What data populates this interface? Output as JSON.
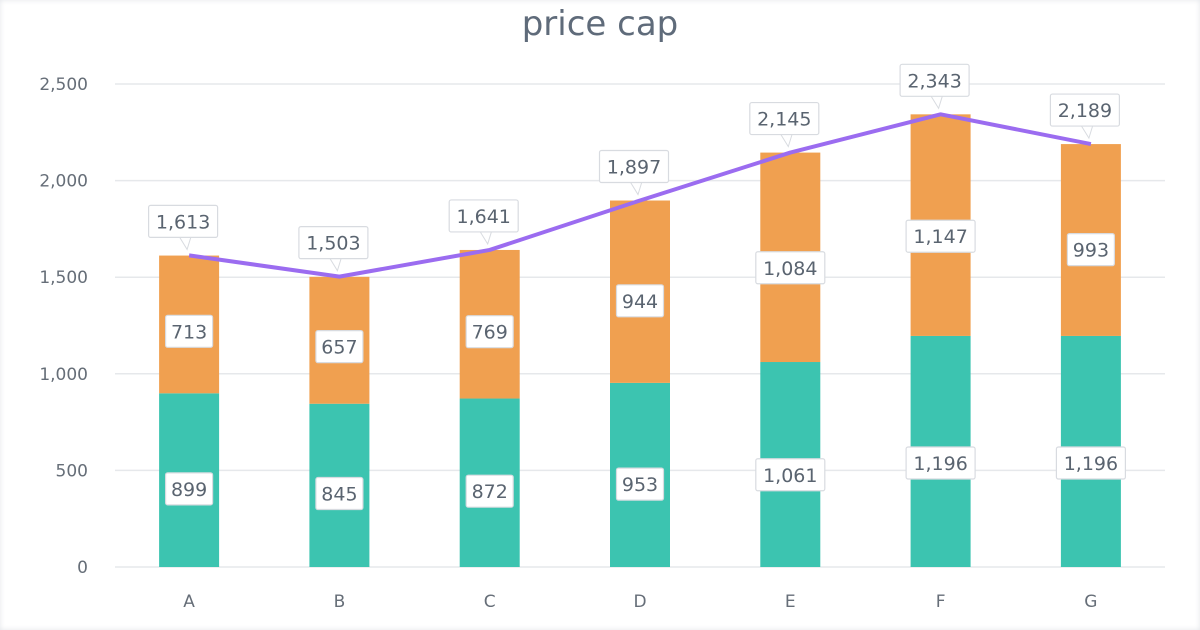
{
  "chart_data": {
    "type": "bar",
    "stacked": true,
    "title": "price cap",
    "categories": [
      "A",
      "B",
      "C",
      "D",
      "E",
      "F",
      "G"
    ],
    "series": [
      {
        "type": "bar",
        "color": "#3cc4b0",
        "values": [
          899,
          845,
          872,
          953,
          1061,
          1196,
          1196
        ]
      },
      {
        "type": "bar",
        "color": "#f0a050",
        "values": [
          713,
          657,
          769,
          944,
          1084,
          1147,
          993
        ]
      },
      {
        "type": "line",
        "color": "#9b6cf0",
        "values": [
          1613,
          1503,
          1641,
          1897,
          2145,
          2343,
          2189
        ]
      }
    ],
    "ylim": [
      0,
      2500
    ],
    "yticks": [
      0,
      500,
      1000,
      1500,
      2000,
      2500
    ],
    "ytick_labels": [
      "0",
      "500",
      "1,000",
      "1,500",
      "2,000",
      "2,500"
    ],
    "grid": true,
    "legend": "none",
    "data_labels": true
  }
}
